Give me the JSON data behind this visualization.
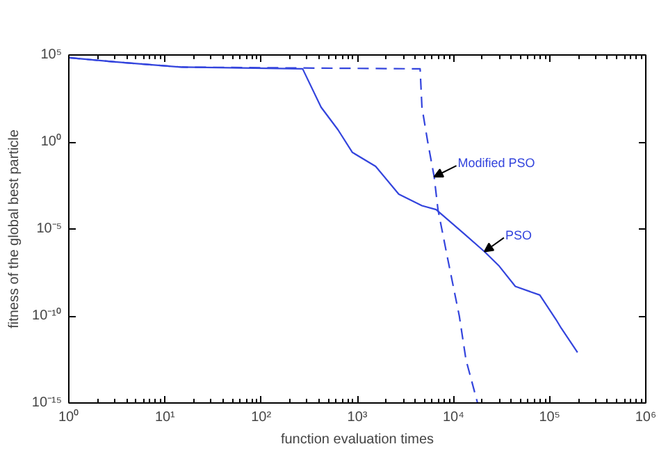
{
  "chart_data": {
    "type": "line",
    "xlabel": "function evaluation times",
    "ylabel": "fitness of the global best particle",
    "log": "xy",
    "xlim": [
      1,
      1000000
    ],
    "ylim": [
      1e-15,
      100000
    ],
    "xticks": [
      {
        "value": 1,
        "label": "10⁰"
      },
      {
        "value": 10,
        "label": "10¹"
      },
      {
        "value": 100,
        "label": "10²"
      },
      {
        "value": 1000,
        "label": "10³"
      },
      {
        "value": 10000,
        "label": "10⁴"
      },
      {
        "value": 100000,
        "label": "10⁵"
      },
      {
        "value": 1000000,
        "label": "10⁶"
      }
    ],
    "yticks": [
      {
        "value": 1e-15,
        "label": "10⁻¹⁵"
      },
      {
        "value": 1e-10,
        "label": "10⁻¹⁰"
      },
      {
        "value": 1e-05,
        "label": "10⁻⁵"
      },
      {
        "value": 1,
        "label": "10⁰"
      },
      {
        "value": 100000,
        "label": "10⁵"
      }
    ],
    "grid": false,
    "marker": "none",
    "series": [
      {
        "name": "PSO",
        "color": "#3344dd",
        "line_style": "solid",
        "x": [
          1,
          3,
          15,
          270,
          420,
          630,
          890,
          1550,
          2700,
          4700,
          6600,
          12600,
          21000,
          29500,
          44000,
          79000,
          117000,
          132000,
          195000
        ],
        "values": [
          70000,
          40000,
          20000,
          16000,
          100,
          5,
          0.25,
          0.04,
          0.001,
          0.00022,
          0.00013,
          6e-06,
          5e-07,
          8e-08,
          5e-09,
          1.6e-09,
          6e-11,
          2e-11,
          8e-13
        ]
      },
      {
        "name": "Modified PSO",
        "color": "#3344dd",
        "line_style": "dashed",
        "x": [
          1,
          3,
          15,
          4500,
          4700,
          5400,
          6300,
          6900,
          8700,
          11500,
          13500,
          17800
        ],
        "values": [
          70000,
          40000,
          20000,
          16000,
          100,
          1,
          0.01,
          0.00013,
          2e-07,
          1e-10,
          3e-13,
          1e-15
        ]
      }
    ]
  }
}
